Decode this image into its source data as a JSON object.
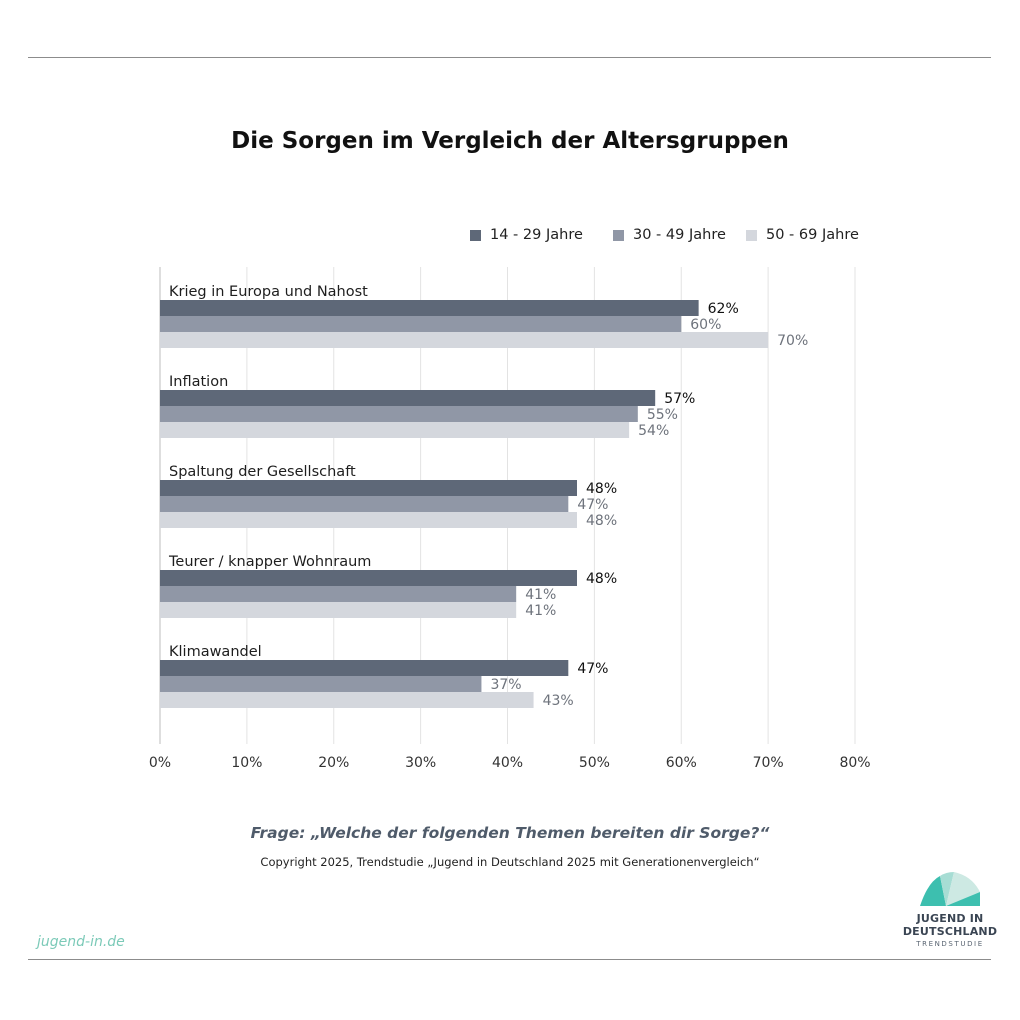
{
  "title": "Die Sorgen im Vergleich der Altersgruppen",
  "legend": [
    {
      "label": "14 - 29 Jahre",
      "color": "#5e6878"
    },
    {
      "label": "30 - 49 Jahre",
      "color": "#9097a6"
    },
    {
      "label": "50 - 69 Jahre",
      "color": "#d4d7dd"
    }
  ],
  "chart_data": {
    "type": "bar",
    "orientation": "horizontal",
    "categories": [
      "Krieg in Europa und Nahost",
      "Inflation",
      "Spaltung der Gesellschaft",
      "Teurer / knapper Wohnraum",
      "Klimawandel"
    ],
    "series": [
      {
        "name": "14 - 29 Jahre",
        "values": [
          62,
          57,
          48,
          48,
          47
        ]
      },
      {
        "name": "30 - 49 Jahre",
        "values": [
          60,
          55,
          47,
          41,
          37
        ]
      },
      {
        "name": "50 - 69 Jahre",
        "values": [
          70,
          54,
          48,
          41,
          43
        ]
      }
    ],
    "value_suffix": "%",
    "xlim": [
      0,
      80
    ],
    "xticks": [
      "0%",
      "10%",
      "20%",
      "30%",
      "40%",
      "50%",
      "60%",
      "70%",
      "80%"
    ],
    "grid": true
  },
  "question": "Frage: „Welche der folgenden Themen bereiten dir Sorge?“",
  "copyright": "Copyright 2025, Trendstudie „Jugend in Deutschland 2025 mit Generationenvergleich“",
  "site": "jugend-in.de",
  "logo": {
    "line1": "JUGEND IN",
    "line2": "DEUTSCHLAND",
    "line3": "TRENDSTUDIE"
  }
}
